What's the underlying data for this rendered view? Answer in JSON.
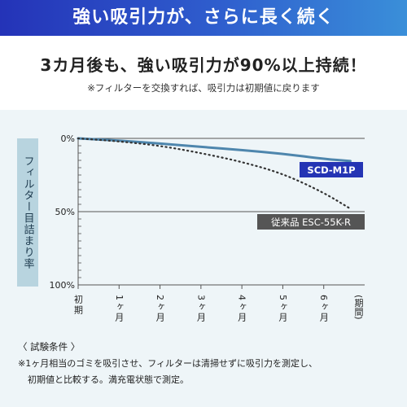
{
  "banner": {
    "text": "強い吸引力が、さらに長く続く"
  },
  "headline": "3カ月後も、強い吸引力が90%以上持続！",
  "subnote": "※フィルターを交換すれば、吸引力は初期値に戻ります",
  "chart_data": {
    "type": "line",
    "ylabel": "フィルター目詰まり率",
    "y_ticks": [
      "0%",
      "50%",
      "100%"
    ],
    "ylim": [
      0,
      100
    ],
    "y_reversed": true,
    "x": [
      0,
      1,
      2,
      3,
      4,
      5,
      6,
      6.65
    ],
    "xlim": [
      0,
      7
    ],
    "x_tick_labels": [
      {
        "value": 0,
        "text": "初期"
      },
      {
        "value": 1,
        "text": "1ヶ月"
      },
      {
        "value": 2,
        "text": "2ヶ月"
      },
      {
        "value": 3,
        "text": "3ヶ月"
      },
      {
        "value": 4,
        "text": "4ヶ月"
      },
      {
        "value": 5,
        "text": "5ヶ月"
      },
      {
        "value": 6,
        "text": "6ヶ月"
      }
    ],
    "x_unit": "(期間)",
    "series": [
      {
        "name": "SCD-M1P",
        "style": "solid",
        "color": "#4e86ad",
        "values": [
          0,
          1.5,
          3.5,
          5.8,
          8,
          10.5,
          14,
          15.5
        ]
      },
      {
        "name": "従来品 ESC-55K-R",
        "style": "dotted",
        "color": "#333333",
        "values": [
          0,
          2,
          5,
          10,
          16,
          24,
          37,
          48
        ]
      }
    ],
    "legend_labels": [
      {
        "text": "SCD-M1P",
        "bg": "#2434b4"
      },
      {
        "text": "従来品 ESC-55K-R",
        "bg": "#555555"
      }
    ],
    "grid": "horizontal"
  },
  "conditions": {
    "title": "〈 試験条件 〉",
    "line1": "※1ヶ月相当のゴミを吸引させ、フィルターは清掃せずに吸引力を測定し、",
    "line2": "初期値と比較する。満充電状態で測定。"
  }
}
